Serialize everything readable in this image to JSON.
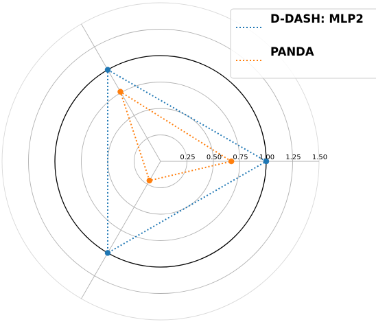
{
  "chart_data": {
    "type": "radar",
    "title": "",
    "axes_count": 3,
    "radial_ticks": [
      "0.25",
      "0.50",
      "0.75",
      "1.00",
      "1.25",
      "1.50"
    ],
    "radial_tick_values": [
      0.25,
      0.5,
      0.75,
      1.0,
      1.25,
      1.5
    ],
    "rlim": [
      0,
      1.5
    ],
    "reference_circle": 1.0,
    "grid": true,
    "legend_position": "top-right",
    "series": [
      {
        "name": "D-DASH: MLP2",
        "values": [
          1.0,
          1.0,
          1.0
        ],
        "color": "#1f77b4",
        "line_style": "dotted"
      },
      {
        "name": "PANDA",
        "values": [
          0.67,
          0.76,
          0.21
        ],
        "color": "#ff7f0e",
        "line_style": "dotted"
      }
    ]
  }
}
